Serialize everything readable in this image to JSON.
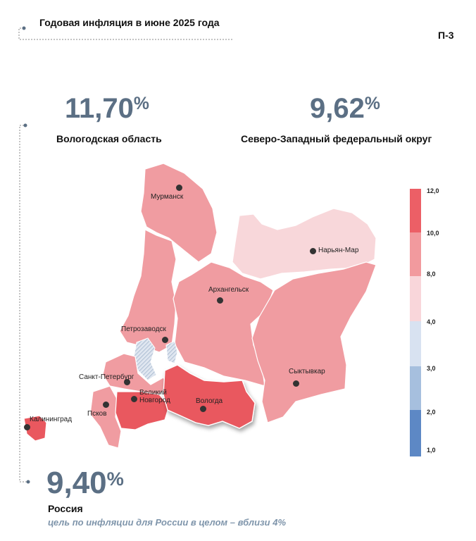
{
  "header": {
    "title": "Годовая инфляция в июне 2025 года",
    "page_code": "П-3"
  },
  "stats": {
    "vologda": {
      "value": "11,70",
      "unit": "%",
      "label": "Вологодская область"
    },
    "nwfd": {
      "value": "9,62",
      "unit": "%",
      "label": "Северо-Западный федеральный округ"
    },
    "russia": {
      "value": "9,40",
      "unit": "%",
      "label": "Россия",
      "goal": "цель по инфляции для России в целом – вблизи 4%"
    }
  },
  "cities": {
    "murmansk": "Мурманск",
    "naryan_mar": "Нарьян-Мар",
    "arkhangelsk": "Архангельск",
    "petrozavodsk": "Петрозаводск",
    "spb": "Санкт-Петербург",
    "veliky_novgorod": "Великий Новгород",
    "vologda": "Вологда",
    "syktyvkar": "Сыктывкар",
    "pskov": "Псков",
    "kaliningrad": "Калининград"
  },
  "legend": {
    "ticks": [
      "12,0",
      "10,0",
      "8,0",
      "4,0",
      "3,0",
      "2,0",
      "1,0"
    ],
    "colors": [
      "#ec5f66",
      "#f29a9e",
      "#f9d6da",
      "#d8e2f1",
      "#a6bfde",
      "#5d88c5"
    ]
  },
  "colors": {
    "accent_value": "#5b6f84",
    "goal_text": "#7f95ab",
    "region_high": "#e9585f",
    "region_mid": "#f09ca1",
    "region_low": "#f8d7da"
  }
}
